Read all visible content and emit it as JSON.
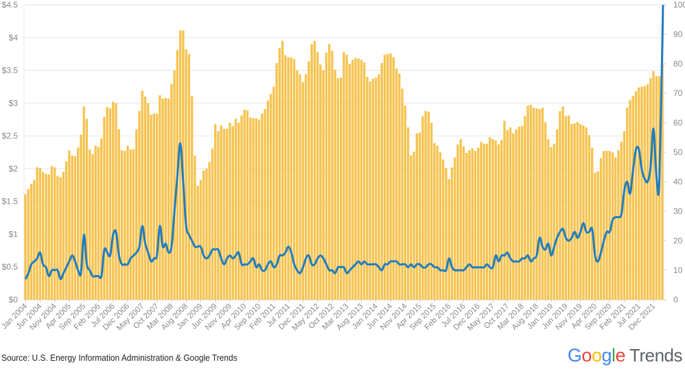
{
  "chart_data": {
    "type": "bar+line",
    "title": "",
    "y_left": {
      "ticks": [
        "$0",
        "$0.5",
        "$1",
        "$1.5",
        "$2",
        "$2.5",
        "$3",
        "$3.5",
        "$4",
        "$4.5"
      ],
      "range": [
        0,
        4.5
      ]
    },
    "y_right": {
      "ticks": [
        "0",
        "10",
        "20",
        "30",
        "40",
        "50",
        "60",
        "70",
        "80",
        "90",
        "100"
      ],
      "range": [
        0,
        100
      ]
    },
    "x_tick_labels": [
      "Jan 2004",
      "Jun 2004",
      "Nov 2004",
      "Apr 2005",
      "Sep 2005",
      "Feb 2006",
      "Jul 2006",
      "Dec 2006",
      "May 2007",
      "Oct 2007",
      "Mar 2008",
      "Aug 2008",
      "Jan 2009",
      "Jun 2009",
      "Nov 2009",
      "Apr 2010",
      "Sep 2010",
      "Feb 2011",
      "Jul 2011",
      "Dec 2011",
      "May 2012",
      "Oct 2012",
      "Mar 2013",
      "Aug 2013",
      "Jan 2014",
      "Jun 2014",
      "Nov 2014",
      "Apr 2015",
      "Sep 2015",
      "Feb 2016",
      "Jul 2016",
      "Dec 2016",
      "May 2017",
      "Oct 2017",
      "Mar 2018",
      "Aug 2018",
      "Jan 2019",
      "Jun 2019",
      "Nov 2019",
      "Apr 2020",
      "Sep 2020",
      "Feb 2021",
      "Jul 2021",
      "Dec 2021"
    ],
    "x_range": [
      "Jan 2004",
      "Mar 2022"
    ],
    "grid": true,
    "series": [
      {
        "type": "bar",
        "axis": "left",
        "color": "#F6C350",
        "values": [
          1.61,
          1.69,
          1.77,
          1.83,
          2.02,
          2.01,
          1.95,
          1.92,
          1.91,
          2.04,
          2.02,
          1.89,
          1.87,
          1.95,
          2.11,
          2.28,
          2.2,
          2.19,
          2.32,
          2.52,
          2.95,
          2.76,
          2.29,
          2.22,
          2.35,
          2.33,
          2.46,
          2.79,
          2.94,
          2.92,
          3.02,
          3.0,
          2.6,
          2.28,
          2.27,
          2.35,
          2.29,
          2.3,
          2.6,
          2.88,
          3.19,
          3.1,
          3.0,
          2.82,
          2.84,
          2.84,
          3.12,
          3.07,
          3.08,
          3.07,
          3.29,
          3.5,
          3.81,
          4.11,
          4.11,
          3.82,
          3.75,
          3.11,
          2.2,
          1.74,
          1.83,
          1.97,
          2.0,
          2.1,
          2.31,
          2.68,
          2.57,
          2.66,
          2.61,
          2.61,
          2.7,
          2.65,
          2.76,
          2.7,
          2.81,
          2.9,
          2.89,
          2.78,
          2.77,
          2.77,
          2.75,
          2.84,
          2.91,
          3.04,
          3.14,
          3.25,
          3.61,
          3.84,
          3.95,
          3.73,
          3.7,
          3.7,
          3.67,
          3.5,
          3.44,
          3.32,
          3.44,
          3.64,
          3.9,
          3.95,
          3.78,
          3.59,
          3.5,
          3.77,
          3.9,
          3.8,
          3.51,
          3.38,
          3.39,
          3.78,
          3.74,
          3.6,
          3.66,
          3.69,
          3.68,
          3.66,
          3.62,
          3.4,
          3.33,
          3.37,
          3.39,
          3.44,
          3.61,
          3.74,
          3.75,
          3.76,
          3.7,
          3.53,
          3.45,
          3.22,
          2.96,
          2.63,
          2.2,
          2.26,
          2.54,
          2.55,
          2.8,
          2.88,
          2.87,
          2.7,
          2.39,
          2.35,
          2.25,
          2.14,
          2.01,
          1.84,
          2.02,
          2.17,
          2.37,
          2.45,
          2.34,
          2.24,
          2.28,
          2.31,
          2.27,
          2.32,
          2.41,
          2.38,
          2.38,
          2.48,
          2.45,
          2.43,
          2.37,
          2.44,
          2.73,
          2.59,
          2.63,
          2.54,
          2.6,
          2.64,
          2.65,
          2.8,
          2.96,
          2.97,
          2.93,
          2.92,
          2.91,
          2.93,
          2.71,
          2.45,
          2.33,
          2.38,
          2.6,
          2.88,
          2.95,
          2.8,
          2.81,
          2.68,
          2.69,
          2.71,
          2.68,
          2.66,
          2.63,
          2.51,
          2.32,
          1.94,
          1.96,
          2.16,
          2.27,
          2.27,
          2.27,
          2.25,
          2.17,
          2.28,
          2.41,
          2.57,
          2.93,
          3.05,
          3.11,
          3.18,
          3.24,
          3.25,
          3.26,
          3.29,
          3.38,
          3.49,
          3.41,
          3.41,
          3.6
        ]
      },
      {
        "type": "line",
        "axis": "right",
        "color": "#1F7DC0",
        "values": [
          7,
          9,
          12,
          13,
          14,
          16,
          12,
          11,
          8,
          10,
          10,
          10,
          7,
          9,
          11,
          13,
          15,
          13,
          10,
          9,
          22,
          12,
          10,
          8,
          8,
          8,
          8,
          17,
          16,
          15,
          22,
          23,
          15,
          12,
          12,
          12,
          14,
          15,
          16,
          18,
          25,
          19,
          16,
          13,
          14,
          15,
          25,
          18,
          19,
          16,
          18,
          30,
          42,
          53,
          40,
          25,
          22,
          20,
          18,
          18,
          18,
          15,
          14,
          15,
          17,
          17,
          17,
          14,
          12,
          14,
          15,
          14,
          15,
          16,
          12,
          12,
          12,
          13,
          14,
          11,
          12,
          10,
          10,
          12,
          13,
          11,
          12,
          15,
          15,
          16,
          18,
          16,
          12,
          10,
          9,
          11,
          14,
          15,
          12,
          12,
          14,
          15,
          14,
          12,
          10,
          10,
          9,
          11,
          11,
          11,
          9,
          10,
          11,
          12,
          13,
          12,
          13,
          12,
          12,
          12,
          12,
          11,
          10,
          12,
          12,
          13,
          13,
          13,
          12,
          12,
          12,
          11,
          12,
          11,
          12,
          12,
          11,
          11,
          12,
          12,
          11,
          11,
          10,
          10,
          10,
          14,
          11,
          10,
          10,
          10,
          10,
          11,
          12,
          11,
          11,
          11,
          11,
          11,
          12,
          11,
          11,
          15,
          13,
          15,
          15,
          16,
          14,
          13,
          13,
          13,
          14,
          14,
          15,
          13,
          14,
          15,
          21,
          18,
          17,
          19,
          15,
          18,
          21,
          23,
          24,
          21,
          20,
          21,
          23,
          21,
          23,
          26,
          23,
          23,
          24,
          15,
          13,
          16,
          20,
          23,
          23,
          27,
          28,
          28,
          29,
          37,
          40,
          36,
          44,
          51,
          51,
          44,
          41,
          40,
          45,
          58,
          42,
          40,
          100
        ]
      }
    ]
  },
  "footer": {
    "source": "Source: U.S. Energy Information Administration & Google Trends",
    "logo_google": "Google",
    "logo_trends": "Trends"
  }
}
